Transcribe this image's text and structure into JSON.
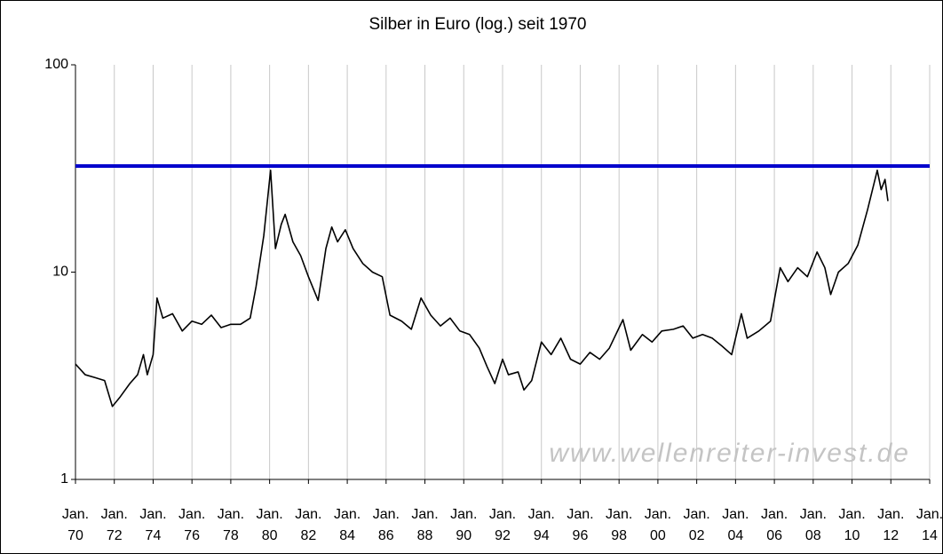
{
  "chart_data": {
    "type": "line",
    "title": "Silber in Euro (log.) seit 1970",
    "watermark": "www.wellenreiter-invest.de",
    "log_scale": true,
    "grid": "x",
    "color": "#000000",
    "xlim": [
      1970,
      2014
    ],
    "ylim": [
      1,
      100
    ],
    "yticks": [
      1,
      10,
      100
    ],
    "xticks": [
      {
        "value": 1970,
        "label": "Jan. 70"
      },
      {
        "value": 1972,
        "label": "Jan. 72"
      },
      {
        "value": 1974,
        "label": "Jan. 74"
      },
      {
        "value": 1976,
        "label": "Jan. 76"
      },
      {
        "value": 1978,
        "label": "Jan. 78"
      },
      {
        "value": 1980,
        "label": "Jan. 80"
      },
      {
        "value": 1982,
        "label": "Jan. 82"
      },
      {
        "value": 1984,
        "label": "Jan. 84"
      },
      {
        "value": 1986,
        "label": "Jan. 86"
      },
      {
        "value": 1988,
        "label": "Jan. 88"
      },
      {
        "value": 1990,
        "label": "Jan. 90"
      },
      {
        "value": 1992,
        "label": "Jan. 92"
      },
      {
        "value": 1994,
        "label": "Jan. 94"
      },
      {
        "value": 1996,
        "label": "Jan. 96"
      },
      {
        "value": 1998,
        "label": "Jan. 98"
      },
      {
        "value": 2000,
        "label": "Jan. 00"
      },
      {
        "value": 2002,
        "label": "Jan. 02"
      },
      {
        "value": 2004,
        "label": "Jan. 04"
      },
      {
        "value": 2006,
        "label": "Jan. 06"
      },
      {
        "value": 2008,
        "label": "Jan. 08"
      },
      {
        "value": 2010,
        "label": "Jan. 10"
      },
      {
        "value": 2012,
        "label": "Jan. 12"
      },
      {
        "value": 2014,
        "label": "Jan. 14"
      }
    ],
    "reference_line": {
      "value": 32.5,
      "color": "#0000cc"
    },
    "x": [
      1970,
      1970.5,
      1971,
      1971.5,
      1971.9,
      1972.3,
      1972.8,
      1973.2,
      1973.5,
      1973.7,
      1974.0,
      1974.2,
      1974.5,
      1975,
      1975.5,
      1976,
      1976.5,
      1977,
      1977.5,
      1978,
      1978.5,
      1979,
      1979.3,
      1979.7,
      1980.05,
      1980.3,
      1980.6,
      1980.8,
      1981.2,
      1981.6,
      1982.0,
      1982.5,
      1982.9,
      1983.2,
      1983.5,
      1983.9,
      1984.3,
      1984.8,
      1985.3,
      1985.8,
      1986.2,
      1986.8,
      1987.3,
      1987.8,
      1988.3,
      1988.8,
      1989.3,
      1989.8,
      1990.3,
      1990.8,
      1991.2,
      1991.6,
      1992.0,
      1992.3,
      1992.8,
      1993.1,
      1993.5,
      1994.0,
      1994.5,
      1995.0,
      1995.5,
      1996.0,
      1996.5,
      1997.0,
      1997.5,
      1998.2,
      1998.6,
      1999.2,
      1999.7,
      2000.2,
      2000.8,
      2001.3,
      2001.8,
      2002.3,
      2002.8,
      2003.3,
      2003.8,
      2004.3,
      2004.6,
      2005.2,
      2005.8,
      2006.3,
      2006.7,
      2007.2,
      2007.7,
      2008.2,
      2008.6,
      2008.9,
      2009.3,
      2009.8,
      2010.3,
      2010.8,
      2011.3,
      2011.5,
      2011.7,
      2011.85
    ],
    "values": [
      3.6,
      3.2,
      3.1,
      3.0,
      2.25,
      2.5,
      2.9,
      3.2,
      4.0,
      3.2,
      4.0,
      7.5,
      6.0,
      6.3,
      5.2,
      5.8,
      5.6,
      6.2,
      5.4,
      5.6,
      5.6,
      6.0,
      8.5,
      15,
      31,
      13,
      17,
      19,
      14,
      12,
      9.5,
      7.3,
      13,
      16.5,
      14,
      16,
      13,
      11,
      10,
      9.5,
      6.2,
      5.8,
      5.3,
      7.5,
      6.2,
      5.5,
      6.0,
      5.2,
      5.0,
      4.3,
      3.5,
      2.9,
      3.8,
      3.2,
      3.3,
      2.7,
      3.0,
      4.6,
      4.0,
      4.8,
      3.8,
      3.6,
      4.1,
      3.8,
      4.3,
      5.9,
      4.2,
      5.0,
      4.6,
      5.2,
      5.3,
      5.5,
      4.8,
      5.0,
      4.8,
      4.4,
      4.0,
      6.3,
      4.8,
      5.2,
      5.8,
      10.5,
      9.0,
      10.5,
      9.5,
      12.5,
      10.5,
      7.8,
      10.0,
      11.0,
      13.5,
      20,
      31,
      25,
      28,
      22
    ]
  }
}
